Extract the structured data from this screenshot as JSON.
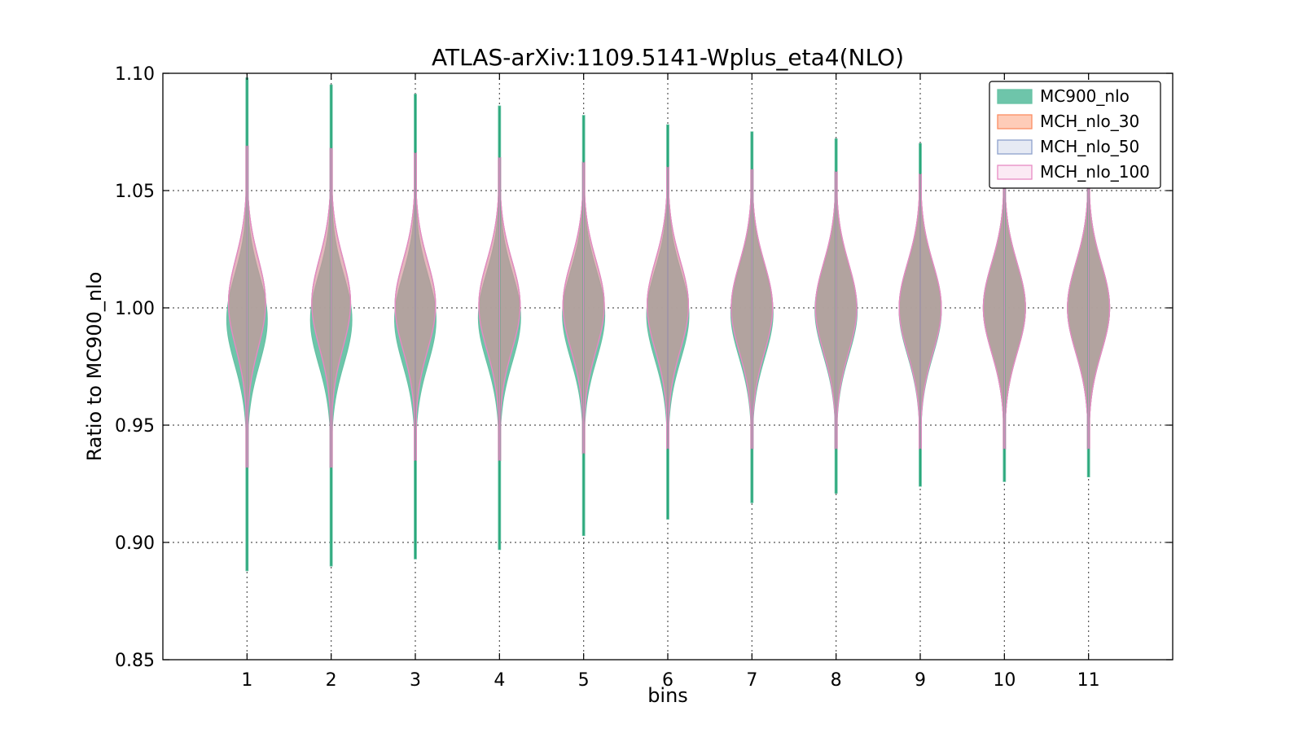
{
  "chart_data": {
    "type": "violin",
    "title": "ATLAS-arXiv:1109.5141-Wplus_eta4(NLO)",
    "xlabel": "bins",
    "ylabel": "Ratio to MC900_nlo",
    "ylim": [
      0.85,
      1.1
    ],
    "yticks": [
      "0.85",
      "0.90",
      "0.95",
      "1.00",
      "1.05",
      "1.10"
    ],
    "xlim": [
      0,
      12
    ],
    "categories": [
      "1",
      "2",
      "3",
      "4",
      "5",
      "6",
      "7",
      "8",
      "9",
      "10",
      "11"
    ],
    "grid": true,
    "legend_position": "top-right",
    "series": [
      {
        "name": "MC900_nlo",
        "color": "#66c2a5",
        "center": [
          0.995,
          0.995,
          0.995,
          0.996,
          0.997,
          0.997,
          0.998,
          0.999,
          0.999,
          1.0,
          1.0
        ],
        "width": [
          0.24,
          0.245,
          0.245,
          0.25,
          0.25,
          0.25,
          0.25,
          0.25,
          0.25,
          0.25,
          0.25
        ],
        "min": [
          0.888,
          0.89,
          0.893,
          0.897,
          0.903,
          0.91,
          0.917,
          0.921,
          0.924,
          0.926,
          0.928
        ],
        "max": [
          1.098,
          1.095,
          1.091,
          1.086,
          1.082,
          1.078,
          1.075,
          1.072,
          1.07,
          1.066,
          1.063
        ]
      },
      {
        "name": "MCH_nlo_30",
        "color": "#fc8d62",
        "center": [
          1.002,
          1.002,
          1.001,
          1.001,
          1.001,
          1.001,
          1.0,
          1.0,
          1.0,
          1.0,
          1.0
        ],
        "width": [
          0.22,
          0.23,
          0.24,
          0.245,
          0.245,
          0.245,
          0.245,
          0.245,
          0.25,
          0.25,
          0.25
        ],
        "min": [
          0.932,
          0.932,
          0.935,
          0.935,
          0.938,
          0.94,
          0.94,
          0.94,
          0.94,
          0.94,
          0.94
        ],
        "max": [
          1.069,
          1.068,
          1.066,
          1.064,
          1.062,
          1.06,
          1.059,
          1.058,
          1.057,
          1.056,
          1.055
        ]
      },
      {
        "name": "MCH_nlo_50",
        "color": "#8da0cb",
        "center": [
          1.002,
          1.002,
          1.001,
          1.001,
          1.001,
          1.001,
          1.0,
          1.0,
          1.0,
          1.0,
          1.0
        ],
        "width": [
          0.22,
          0.23,
          0.24,
          0.245,
          0.245,
          0.245,
          0.245,
          0.245,
          0.25,
          0.25,
          0.25
        ],
        "min": [
          0.932,
          0.932,
          0.935,
          0.935,
          0.938,
          0.94,
          0.94,
          0.94,
          0.94,
          0.94,
          0.94
        ],
        "max": [
          1.069,
          1.068,
          1.066,
          1.064,
          1.062,
          1.06,
          1.059,
          1.058,
          1.057,
          1.056,
          1.055
        ]
      },
      {
        "name": "MCH_nlo_100",
        "color": "#e78ac3",
        "center": [
          1.002,
          1.002,
          1.001,
          1.001,
          1.001,
          1.001,
          1.0,
          1.0,
          1.0,
          1.0,
          1.0
        ],
        "width": [
          0.22,
          0.23,
          0.24,
          0.245,
          0.245,
          0.245,
          0.245,
          0.245,
          0.25,
          0.25,
          0.25
        ],
        "min": [
          0.932,
          0.932,
          0.935,
          0.935,
          0.938,
          0.94,
          0.94,
          0.94,
          0.94,
          0.94,
          0.94
        ],
        "max": [
          1.069,
          1.068,
          1.066,
          1.064,
          1.062,
          1.06,
          1.059,
          1.058,
          1.057,
          1.056,
          1.055
        ]
      }
    ]
  }
}
